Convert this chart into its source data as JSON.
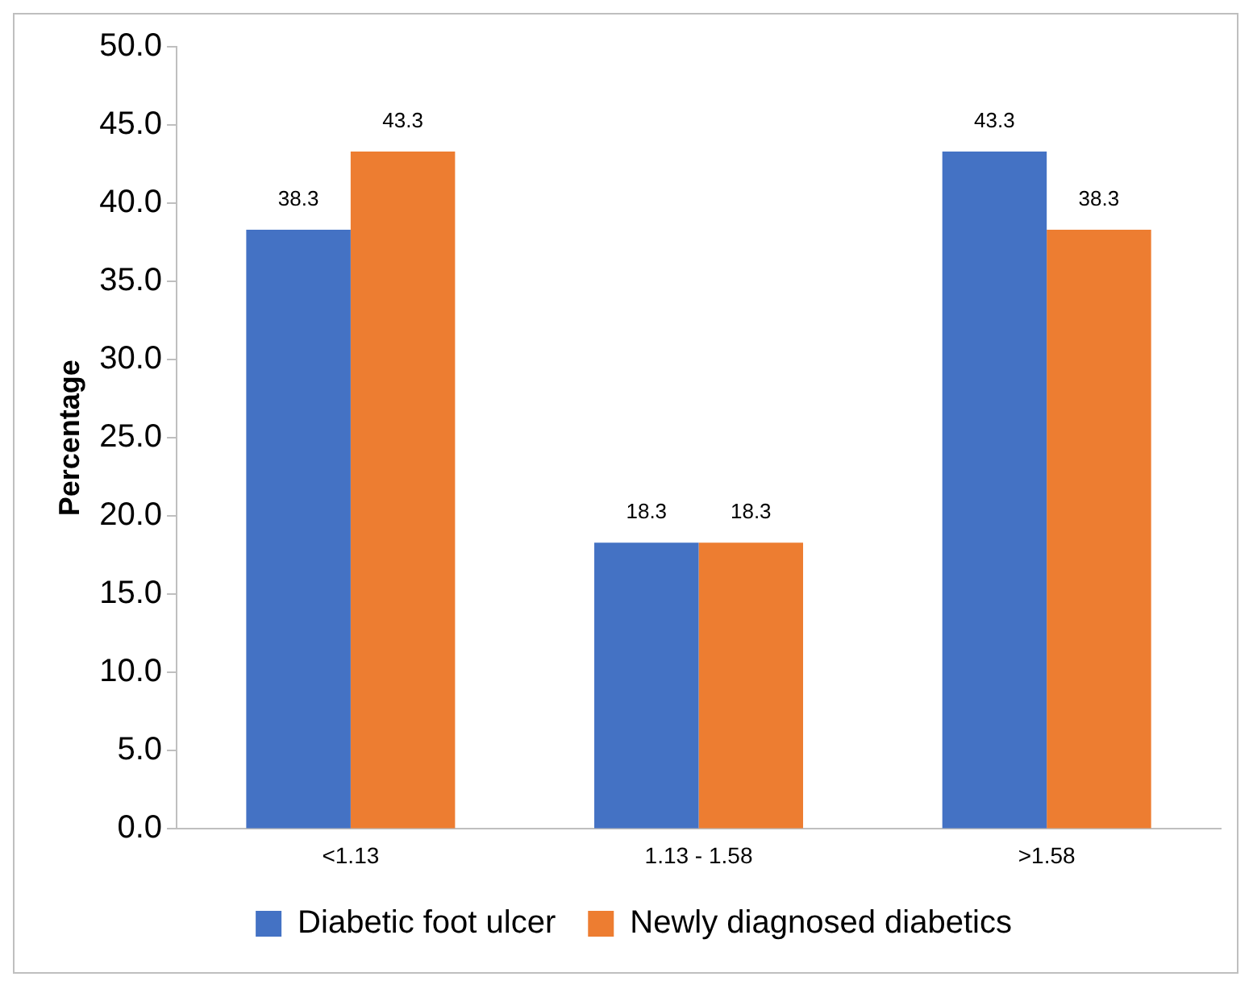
{
  "chart_data": {
    "type": "bar",
    "ylabel": "Percentage",
    "categories": [
      "<1.13",
      "1.13 - 1.58",
      ">1.58"
    ],
    "series": [
      {
        "name": "Diabetic foot ulcer",
        "color": "#4472c4",
        "values": [
          38.3,
          18.3,
          43.3
        ]
      },
      {
        "name": "Newly diagnosed diabetics",
        "color": "#ed7d31",
        "values": [
          43.3,
          18.3,
          38.3
        ]
      }
    ],
    "ylim": [
      0,
      50
    ],
    "yticks": [
      {
        "value": 0,
        "label": "0.0"
      },
      {
        "value": 5,
        "label": "5.0"
      },
      {
        "value": 10,
        "label": "10.0"
      },
      {
        "value": 15,
        "label": "15.0"
      },
      {
        "value": 20,
        "label": "20.0"
      },
      {
        "value": 25,
        "label": "25.0"
      },
      {
        "value": 30,
        "label": "30.0"
      },
      {
        "value": 35,
        "label": "35.0"
      },
      {
        "value": 40,
        "label": "40.0"
      },
      {
        "value": 45,
        "label": "45.0"
      },
      {
        "value": 50,
        "label": "50.0"
      }
    ],
    "grid": false,
    "legend": "bottom",
    "data_labels": true
  }
}
